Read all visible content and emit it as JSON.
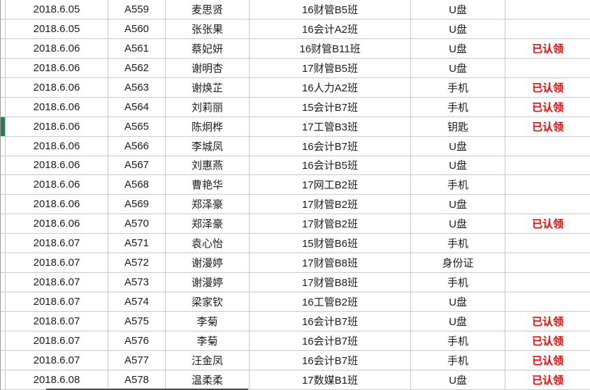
{
  "table": {
    "kind": "spreadsheet-grid",
    "columns": [
      {
        "key": "date",
        "name": "date-column"
      },
      {
        "key": "id",
        "name": "id-column"
      },
      {
        "key": "name",
        "name": "name-column"
      },
      {
        "key": "class_name",
        "name": "class-column"
      },
      {
        "key": "item",
        "name": "item-column"
      },
      {
        "key": "status",
        "name": "status-column"
      }
    ],
    "rows": [
      {
        "date": "2018.6.05",
        "id": "A559",
        "name": "麦思贤",
        "class_name": "16财管B5班",
        "item": "U盘",
        "status": ""
      },
      {
        "date": "2018.6.05",
        "id": "A560",
        "name": "张张果",
        "class_name": "16会计A2班",
        "item": "U盘",
        "status": ""
      },
      {
        "date": "2018.6.06",
        "id": "A561",
        "name": "蔡妃妍",
        "class_name": "16财管B11班",
        "item": "U盘",
        "status": "已认领"
      },
      {
        "date": "2018.6.06",
        "id": "A562",
        "name": "谢明杏",
        "class_name": "17财管B5班",
        "item": "U盘",
        "status": ""
      },
      {
        "date": "2018.6.06",
        "id": "A563",
        "name": "谢焕芷",
        "class_name": "16人力A2班",
        "item": "手机",
        "status": "已认领"
      },
      {
        "date": "2018.6.06",
        "id": "A564",
        "name": "刘莉丽",
        "class_name": "15会计B7班",
        "item": "手机",
        "status": "已认领"
      },
      {
        "date": "2018.6.06",
        "id": "A565",
        "name": "陈炯桦",
        "class_name": "17工管B3班",
        "item": "钥匙",
        "status": "已认领"
      },
      {
        "date": "2018.6.06",
        "id": "A566",
        "name": "李城凤",
        "class_name": "16会计B7班",
        "item": "U盘",
        "status": ""
      },
      {
        "date": "2018.6.06",
        "id": "A567",
        "name": "刘惠燕",
        "class_name": "16会计B5班",
        "item": "U盘",
        "status": ""
      },
      {
        "date": "2018.6.06",
        "id": "A568",
        "name": "曹艳华",
        "class_name": "17网工B2班",
        "item": "手机",
        "status": ""
      },
      {
        "date": "2018.6.06",
        "id": "A569",
        "name": "郑泽豪",
        "class_name": "17财管B2班",
        "item": "U盘",
        "status": ""
      },
      {
        "date": "2018.6.06",
        "id": "A570",
        "name": "郑泽豪",
        "class_name": "17财管B2班",
        "item": "U盘",
        "status": "已认领"
      },
      {
        "date": "2018.6.07",
        "id": "A571",
        "name": "袁心怡",
        "class_name": "15财管B6班",
        "item": "手机",
        "status": ""
      },
      {
        "date": "2018.6.07",
        "id": "A572",
        "name": "谢漫婷",
        "class_name": "17财管B8班",
        "item": "身份证",
        "status": ""
      },
      {
        "date": "2018.6.07",
        "id": "A573",
        "name": "谢漫婷",
        "class_name": "17财管B8班",
        "item": "手机",
        "status": ""
      },
      {
        "date": "2018.6.07",
        "id": "A574",
        "name": "梁家钦",
        "class_name": "16工管B2班",
        "item": "U盘",
        "status": ""
      },
      {
        "date": "2018.6.07",
        "id": "A575",
        "name": "李菊",
        "class_name": "16会计B7班",
        "item": "U盘",
        "status": "已认领"
      },
      {
        "date": "2018.6.07",
        "id": "A576",
        "name": "李菊",
        "class_name": "16会计B7班",
        "item": "手机",
        "status": "已认领"
      },
      {
        "date": "2018.6.07",
        "id": "A577",
        "name": "汪金凤",
        "class_name": "16会计B7班",
        "item": "手机",
        "status": "已认领"
      },
      {
        "date": "2018.6.08",
        "id": "A578",
        "name": "温柔柔",
        "class_name": "17数媒B1班",
        "item": "U盘",
        "status": "已认领"
      }
    ],
    "claimed_label": "已认领",
    "marker": {
      "row_index": 6
    }
  },
  "colors": {
    "gridline": "#c9c9c9",
    "status_red": "#ff0000",
    "marker_green": "#2a7d4f",
    "text": "#1c1c1c"
  }
}
